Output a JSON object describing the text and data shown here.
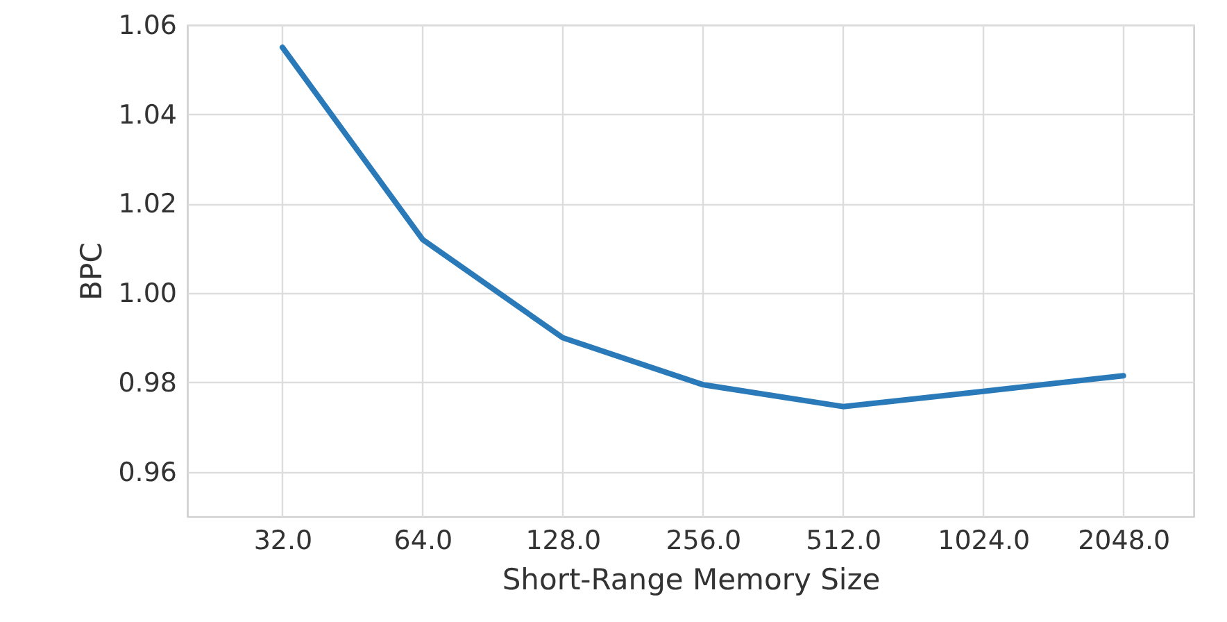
{
  "chart_data": {
    "type": "line",
    "xlabel": "Short-Range Memory Size",
    "ylabel": "BPC",
    "x": [
      32,
      64,
      128,
      256,
      512,
      1024,
      2048
    ],
    "series": [
      {
        "color": "#2a7ab9",
        "values": [
          1.055,
          1.012,
          0.99,
          0.9795,
          0.9746,
          0.978,
          0.9815
        ]
      }
    ],
    "log": "x",
    "xlim": [
      20,
      2900
    ],
    "xticks": [
      {
        "value": 32,
        "label": "32.0"
      },
      {
        "value": 64,
        "label": "64.0"
      },
      {
        "value": 128,
        "label": "128.0"
      },
      {
        "value": 256,
        "label": "256.0"
      },
      {
        "value": 512,
        "label": "512.0"
      },
      {
        "value": 1024,
        "label": "1024.0"
      },
      {
        "value": 2048,
        "label": "2048.0"
      }
    ],
    "ylim": [
      0.95,
      1.06
    ],
    "yticks": [
      {
        "value": 0.96,
        "label": "0.96"
      },
      {
        "value": 0.98,
        "label": "0.98"
      },
      {
        "value": 1.0,
        "label": "1.00"
      },
      {
        "value": 1.02,
        "label": "1.02"
      },
      {
        "value": 1.04,
        "label": "1.04"
      },
      {
        "value": 1.06,
        "label": "1.06"
      }
    ],
    "grid": true,
    "marker": "none",
    "line_style": "solid"
  }
}
